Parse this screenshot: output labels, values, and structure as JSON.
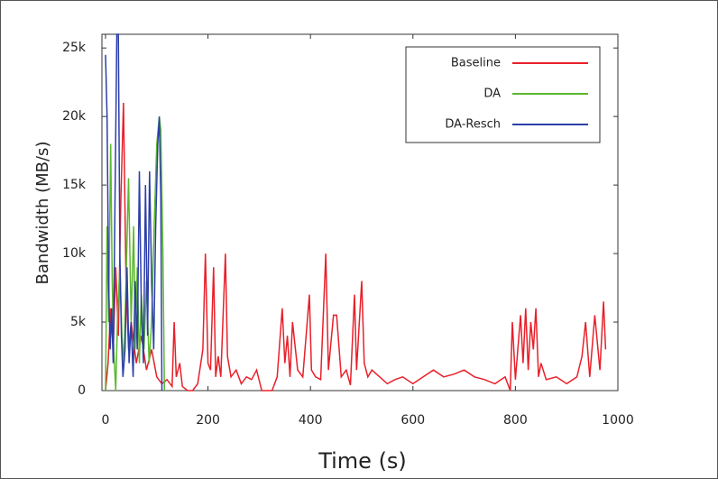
{
  "chart_data": {
    "type": "line",
    "xlabel": "Time (s)",
    "ylabel": "Bandwidth (MB/s)",
    "xlim": [
      -7,
      1000
    ],
    "xticks": [
      0,
      200,
      400,
      600,
      800,
      1000
    ],
    "ylim": [
      0,
      26000
    ],
    "yticks": [
      0,
      {
        "value": 5000,
        "label": "5k"
      },
      {
        "value": 10000,
        "label": "10k"
      },
      {
        "value": 15000,
        "label": "15k"
      },
      {
        "value": 20000,
        "label": "20k"
      },
      {
        "value": 25000,
        "label": "25k"
      }
    ],
    "legend": "upper right",
    "series": [
      {
        "name": "Baseline",
        "color": "#e8202a",
        "x": [
          0,
          5,
          10,
          15,
          20,
          25,
          30,
          35,
          40,
          45,
          50,
          60,
          70,
          80,
          90,
          100,
          110,
          120,
          130,
          134,
          138,
          145,
          150,
          160,
          170,
          180,
          190,
          195,
          200,
          205,
          211,
          215,
          220,
          225,
          234,
          238,
          245,
          255,
          265,
          275,
          285,
          295,
          305,
          315,
          325,
          335,
          345,
          350,
          355,
          360,
          365,
          375,
          385,
          398,
          402,
          410,
          420,
          430,
          435,
          445,
          451,
          460,
          470,
          478,
          486,
          490,
          500,
          505,
          512,
          520,
          535,
          550,
          565,
          580,
          600,
          620,
          640,
          660,
          680,
          700,
          720,
          740,
          760,
          780,
          790,
          794,
          800,
          810,
          815,
          820,
          825,
          830,
          835,
          840,
          845,
          850,
          860,
          880,
          900,
          920,
          930,
          937,
          945,
          955,
          965,
          972,
          976
        ],
        "values": [
          0,
          2000,
          6000,
          3000,
          9000,
          4000,
          14000,
          21000,
          8000,
          3000,
          5000,
          2000,
          4000,
          1500,
          3000,
          1000,
          500,
          800,
          300,
          5000,
          1000,
          2000,
          300,
          0,
          0,
          500,
          3000,
          10000,
          2000,
          1500,
          9000,
          1000,
          2500,
          1000,
          10000,
          2500,
          1000,
          1500,
          500,
          1000,
          800,
          1500,
          0,
          0,
          0,
          1000,
          6000,
          2000,
          4000,
          1000,
          5000,
          1500,
          1000,
          7000,
          1500,
          1000,
          800,
          10000,
          1500,
          5500,
          5500,
          1000,
          1500,
          400,
          7000,
          1500,
          8000,
          2000,
          1000,
          1500,
          1000,
          500,
          800,
          1000,
          500,
          1000,
          1500,
          1000,
          1200,
          1500,
          1000,
          800,
          500,
          1000,
          0,
          5000,
          800,
          5500,
          2000,
          6000,
          1500,
          5000,
          3000,
          6000,
          1000,
          2000,
          800,
          1000,
          500,
          1000,
          2500,
          5000,
          1000,
          5500,
          1500,
          6500,
          3000
        ]
      },
      {
        "name": "DA",
        "color": "#5cb82e",
        "x": [
          0,
          3,
          6,
          10,
          13,
          16,
          20,
          24,
          28,
          32,
          36,
          40,
          45,
          50,
          55,
          58,
          62,
          66,
          70,
          75,
          80,
          85,
          90,
          95,
          100,
          105,
          108,
          112,
          115
        ],
        "values": [
          0,
          12000,
          5000,
          18000,
          8000,
          3000,
          0,
          6000,
          9000,
          4000,
          2000,
          8000,
          15500,
          5000,
          12000,
          3000,
          9000,
          2000,
          7000,
          3000,
          8000,
          2000,
          5000,
          12000,
          18000,
          20000,
          19000,
          10000,
          0
        ]
      },
      {
        "name": "DA-Resch",
        "color": "#2c3ea8",
        "x": [
          0,
          3,
          6,
          9,
          12,
          15,
          18,
          22,
          25,
          28,
          31,
          34,
          38,
          42,
          46,
          50,
          54,
          58,
          62,
          66,
          70,
          74,
          78,
          82,
          86,
          90,
          94,
          98,
          102,
          105,
          108,
          110
        ],
        "values": [
          24500,
          20000,
          8000,
          3000,
          6000,
          2000,
          12000,
          26000,
          26000,
          10000,
          4000,
          1000,
          3000,
          9000,
          2000,
          5000,
          1000,
          8000,
          3000,
          16000,
          6000,
          2000,
          15000,
          4000,
          16000,
          8000,
          3000,
          12000,
          18000,
          20000,
          14000,
          0
        ]
      }
    ]
  }
}
